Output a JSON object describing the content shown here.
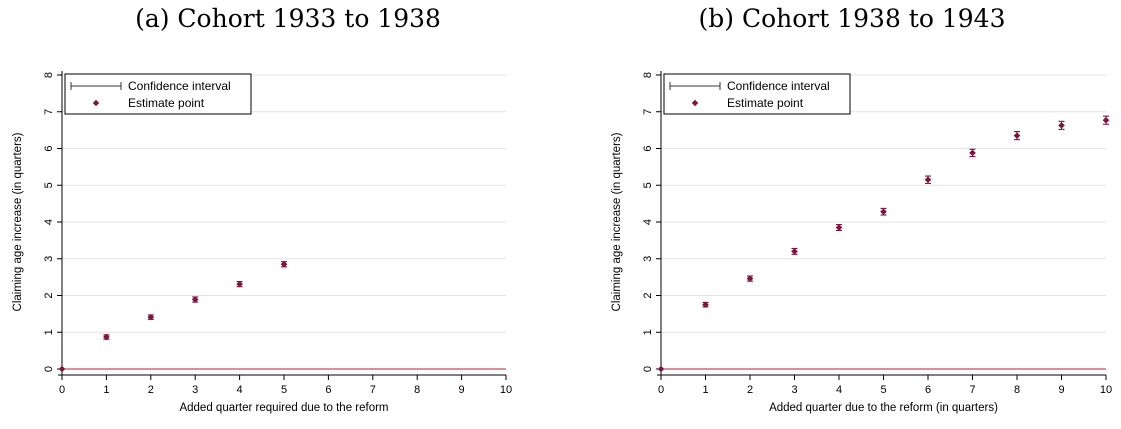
{
  "chart_data": [
    {
      "type": "scatter",
      "title": "(a) Cohort 1933 to 1938",
      "xlabel": "Added quarter required due to the reform",
      "ylabel": "Claiming age increase (in quarters)",
      "xlim": [
        0,
        10
      ],
      "ylim": [
        0,
        8
      ],
      "xticks": [
        "0",
        "1",
        "2",
        "3",
        "4",
        "5",
        "6",
        "7",
        "8",
        "9",
        "10"
      ],
      "yticks": [
        "0",
        "1",
        "2",
        "3",
        "4",
        "5",
        "6",
        "7",
        "8"
      ],
      "grid": "horizontal",
      "reference_line": {
        "y": 0,
        "color": "#b22234"
      },
      "legend": {
        "placement": "top-left",
        "entries": [
          "Confidence interval",
          "Estimate point"
        ]
      },
      "series": [
        {
          "name": "Estimate point",
          "color": "#7a1540",
          "points": [
            {
              "x": 0,
              "y": 0.0,
              "lo": 0.0,
              "hi": 0.0
            },
            {
              "x": 1,
              "y": 0.87,
              "lo": 0.81,
              "hi": 0.93
            },
            {
              "x": 2,
              "y": 1.41,
              "lo": 1.35,
              "hi": 1.47
            },
            {
              "x": 3,
              "y": 1.89,
              "lo": 1.82,
              "hi": 1.96
            },
            {
              "x": 4,
              "y": 2.31,
              "lo": 2.24,
              "hi": 2.38
            },
            {
              "x": 5,
              "y": 2.85,
              "lo": 2.78,
              "hi": 2.92
            }
          ]
        }
      ]
    },
    {
      "type": "scatter",
      "title": "(b) Cohort 1938 to 1943",
      "xlabel": "Added quarter due to the reform (in quarters)",
      "ylabel": "Claiming age increase (in quarters)",
      "xlim": [
        0,
        10
      ],
      "ylim": [
        0,
        8
      ],
      "xticks": [
        "0",
        "1",
        "2",
        "3",
        "4",
        "5",
        "6",
        "7",
        "8",
        "9",
        "10"
      ],
      "yticks": [
        "0",
        "1",
        "2",
        "3",
        "4",
        "5",
        "6",
        "7",
        "8"
      ],
      "grid": "horizontal",
      "reference_line": {
        "y": 0,
        "color": "#b22234"
      },
      "legend": {
        "placement": "top-left",
        "entries": [
          "Confidence interval",
          "Estimate point"
        ]
      },
      "series": [
        {
          "name": "Estimate point",
          "color": "#7a1540",
          "points": [
            {
              "x": 0,
              "y": 0.0,
              "lo": 0.0,
              "hi": 0.0
            },
            {
              "x": 1,
              "y": 1.75,
              "lo": 1.69,
              "hi": 1.81
            },
            {
              "x": 2,
              "y": 2.46,
              "lo": 2.39,
              "hi": 2.53
            },
            {
              "x": 3,
              "y": 3.2,
              "lo": 3.12,
              "hi": 3.28
            },
            {
              "x": 4,
              "y": 3.85,
              "lo": 3.77,
              "hi": 3.93
            },
            {
              "x": 5,
              "y": 4.28,
              "lo": 4.19,
              "hi": 4.37
            },
            {
              "x": 6,
              "y": 5.15,
              "lo": 5.05,
              "hi": 5.25
            },
            {
              "x": 7,
              "y": 5.88,
              "lo": 5.78,
              "hi": 5.98
            },
            {
              "x": 8,
              "y": 6.35,
              "lo": 6.24,
              "hi": 6.46
            },
            {
              "x": 9,
              "y": 6.63,
              "lo": 6.52,
              "hi": 6.74
            },
            {
              "x": 10,
              "y": 6.77,
              "lo": 6.66,
              "hi": 6.88
            }
          ]
        }
      ]
    }
  ]
}
